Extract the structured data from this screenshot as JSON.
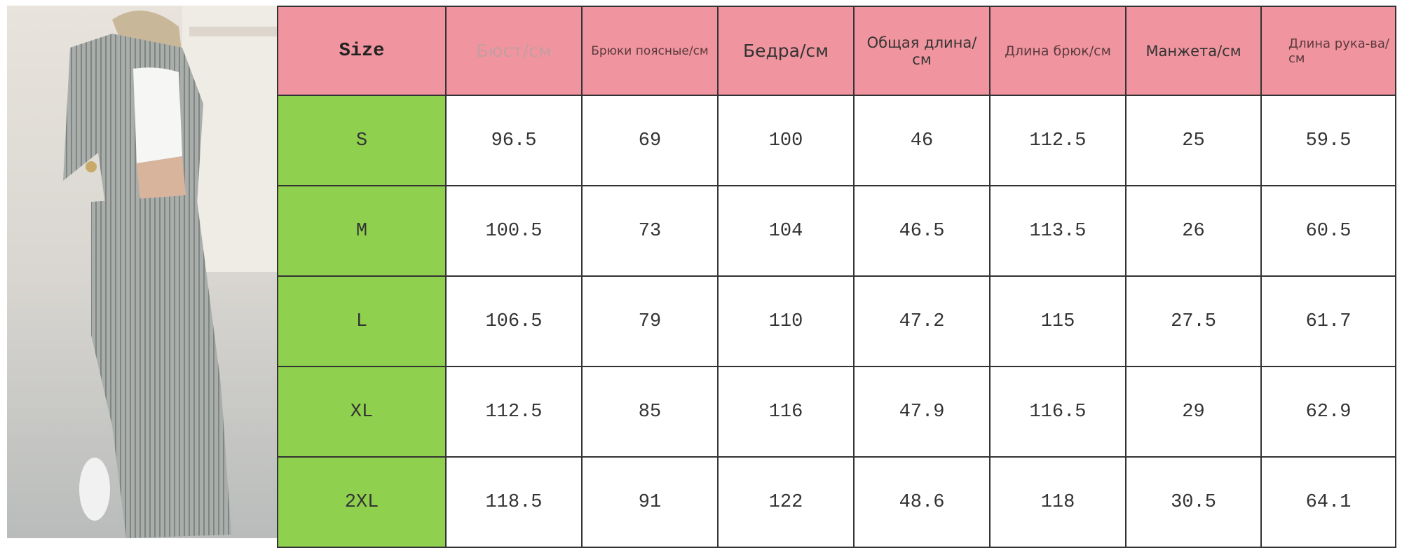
{
  "table": {
    "header": [
      "Size",
      "Бюст/см",
      "Брюки поясные/см",
      "Бедра/см",
      "Общая длина/см",
      "Длина брюк/см",
      "Манжета/см",
      "Длина рука-ва/см"
    ],
    "rows": [
      [
        "S",
        "96.5",
        "69",
        "100",
        "46",
        "112.5",
        "25",
        "59.5"
      ],
      [
        "M",
        "100.5",
        "73",
        "104",
        "46.5",
        "113.5",
        "26",
        "60.5"
      ],
      [
        "L",
        "106.5",
        "79",
        "110",
        "47.2",
        "115",
        "27.5",
        "61.7"
      ],
      [
        "XL",
        "112.5",
        "85",
        "116",
        "47.9",
        "116.5",
        "29",
        "62.9"
      ],
      [
        "2XL",
        "118.5",
        "91",
        "122",
        "48.6",
        "118",
        "30.5",
        "64.1"
      ]
    ]
  }
}
